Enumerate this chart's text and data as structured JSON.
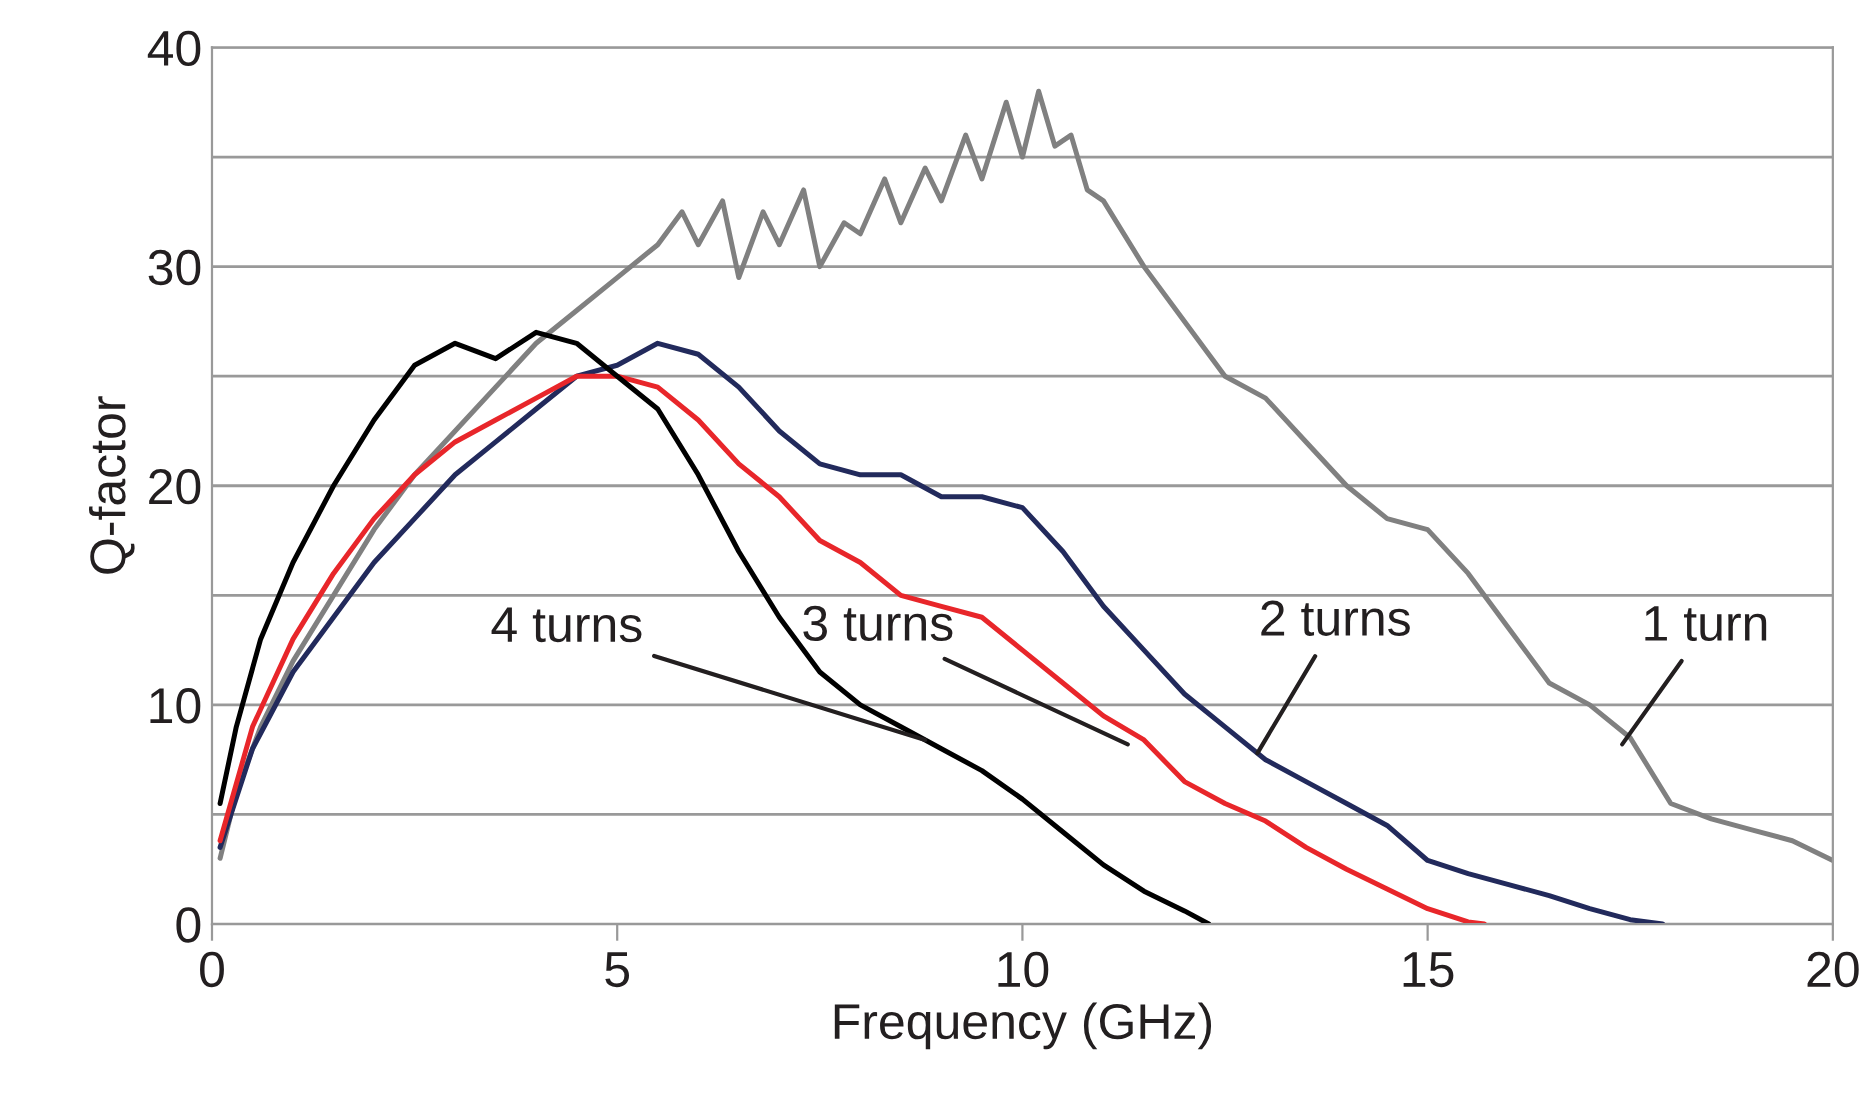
{
  "chart_data": {
    "type": "line",
    "xlabel": "Frequency (GHz)",
    "ylabel": "Q-factor",
    "xlim": [
      0,
      20
    ],
    "xticks": [
      0,
      5,
      10,
      15,
      20
    ],
    "ylim": [
      0,
      40
    ],
    "yticks": [
      0,
      {
        "value": 5,
        "label": null
      },
      10,
      {
        "value": 15,
        "label": null
      },
      20,
      {
        "value": 25,
        "label": null
      },
      30,
      {
        "value": 35,
        "label": null
      },
      40
    ],
    "grid": "y",
    "marker": "none",
    "line_style": "solid",
    "series": [
      {
        "color": "#808080",
        "x": [
          0.1,
          0.3,
          0.6,
          1,
          1.5,
          2,
          2.5,
          3,
          3.5,
          4,
          4.5,
          5,
          5.5,
          5.8,
          6,
          6.3,
          6.5,
          6.8,
          7,
          7.3,
          7.5,
          7.8,
          8,
          8.3,
          8.5,
          8.8,
          9,
          9.3,
          9.5,
          9.8,
          10,
          10.2,
          10.4,
          10.6,
          10.8,
          11,
          11.5,
          12,
          12.5,
          13,
          13.5,
          14,
          14.5,
          15,
          15.5,
          16,
          16.5,
          17,
          17.5,
          18,
          18.5,
          19,
          19.5,
          20
        ],
        "values": [
          3,
          6,
          9,
          12,
          15,
          18,
          20.5,
          22.5,
          24.5,
          26.5,
          28,
          29.5,
          31,
          32.5,
          31,
          33,
          29.5,
          32.5,
          31,
          33.5,
          30,
          32,
          31.5,
          34,
          32,
          34.5,
          33,
          36,
          34,
          37.5,
          35,
          38,
          35.5,
          36,
          33.5,
          33,
          30,
          27.5,
          25,
          24,
          22,
          20,
          18.5,
          18,
          16,
          13.5,
          11,
          10,
          8.5,
          5.5,
          4.8,
          4.3,
          3.8,
          2.9
        ]
      },
      {
        "color": "#222a5c",
        "x": [
          0.1,
          0.5,
          1,
          1.5,
          2,
          2.5,
          3,
          3.5,
          4,
          4.5,
          5,
          5.5,
          6,
          6.5,
          7,
          7.5,
          8,
          8.5,
          9,
          9.5,
          10,
          10.5,
          11,
          11.5,
          12,
          12.5,
          13,
          13.5,
          14,
          14.5,
          15,
          15.5,
          16,
          16.5,
          17,
          17.5,
          17.9
        ],
        "values": [
          3.5,
          8,
          11.5,
          14,
          16.5,
          18.5,
          20.5,
          22,
          23.5,
          25,
          25.5,
          26.5,
          26,
          24.5,
          22.5,
          21,
          20.5,
          20.5,
          19.5,
          19.5,
          19,
          17,
          14.5,
          12.5,
          10.5,
          9,
          7.5,
          6.5,
          5.5,
          4.5,
          2.9,
          2.3,
          1.8,
          1.3,
          0.7,
          0.2,
          0
        ]
      },
      {
        "color": "#e8262a",
        "x": [
          0.1,
          0.5,
          1,
          1.5,
          2,
          2.5,
          3,
          3.5,
          4,
          4.5,
          5,
          5.5,
          6,
          6.5,
          7,
          7.5,
          8,
          8.5,
          9,
          9.5,
          10,
          10.5,
          11,
          11.5,
          12,
          12.5,
          13,
          13.5,
          14,
          14.5,
          15,
          15.5,
          15.7
        ],
        "values": [
          3.8,
          9,
          13,
          16,
          18.5,
          20.5,
          22,
          23,
          24,
          25,
          25,
          24.5,
          23,
          21,
          19.5,
          17.5,
          16.5,
          15,
          14.5,
          14,
          12.5,
          11,
          9.5,
          8.4,
          6.5,
          5.5,
          4.7,
          3.5,
          2.5,
          1.6,
          0.7,
          0.1,
          0
        ]
      },
      {
        "color": "#000000",
        "x": [
          0.1,
          0.3,
          0.6,
          1,
          1.5,
          2,
          2.5,
          3,
          3.5,
          4,
          4.5,
          5,
          5.5,
          6,
          6.5,
          7,
          7.5,
          8,
          8.5,
          9,
          9.5,
          10,
          10.5,
          11,
          11.5,
          12,
          12.3
        ],
        "values": [
          5.5,
          9,
          13,
          16.5,
          20,
          23,
          25.5,
          26.5,
          25.8,
          27,
          26.5,
          25,
          23.5,
          20.5,
          17,
          14,
          11.5,
          10,
          9,
          8,
          7,
          5.7,
          4.2,
          2.7,
          1.5,
          0.6,
          0
        ]
      }
    ],
    "annotations": [
      {
        "text": "4 turns",
        "x": 8.8,
        "y": 8.4
      },
      {
        "text": "3 turns",
        "x": 11.3,
        "y": 8.2
      },
      {
        "text": "2 turns",
        "x": 12.9,
        "y": 7.8
      },
      {
        "text": "1 turn",
        "x": 17.4,
        "y": 8.2
      }
    ]
  }
}
